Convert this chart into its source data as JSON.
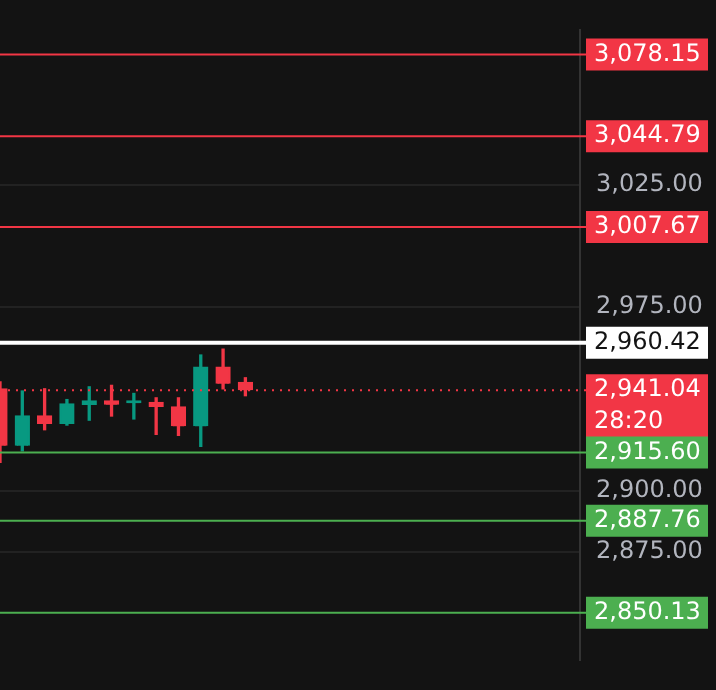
{
  "chart_data": {
    "type": "candlestick",
    "categories": [
      null,
      null,
      null,
      null,
      null,
      null,
      null,
      null,
      null,
      null,
      null,
      null,
      null,
      null,
      null,
      null,
      null,
      null,
      null,
      null,
      null,
      null,
      null,
      null,
      null,
      null,
      null
    ],
    "ohlc": [
      [
        2941.6,
        2944.4,
        2911.6,
        2918.3
      ],
      [
        2918.3,
        2940.7,
        2916.3,
        2930.5
      ],
      [
        2930.5,
        2941.6,
        2924.9,
        2927.2
      ],
      [
        2927.2,
        2937.2,
        2926.8,
        2935.4
      ],
      [
        2935.0,
        2942.4,
        2928.8,
        2936.7
      ],
      [
        2936.7,
        2943.0,
        2930.5,
        2935.4
      ],
      [
        2936.0,
        2939.7,
        2929.3,
        2936.7
      ],
      [
        2936.0,
        2937.9,
        2923.0,
        2934.2
      ],
      [
        2934.2,
        2937.9,
        2922.6,
        2926.3
      ],
      [
        2926.3,
        2955.4,
        2918.1,
        2950.4
      ],
      [
        2950.4,
        2957.8,
        2941.6,
        2943.7
      ],
      [
        2944.2,
        2946.1,
        2938.8,
        2941.04
      ],
      null,
      null,
      null,
      null,
      null,
      null,
      null,
      null,
      null,
      null,
      null,
      null,
      null,
      null,
      null
    ],
    "colors": [
      "#f23645",
      "#089981",
      "#f23645",
      "#089981",
      "#089981",
      "#f23645",
      "#089981",
      "#f23645",
      "#f23645",
      "#089981",
      "#f23645",
      "#f23645",
      null,
      null,
      null,
      null,
      null,
      null,
      null,
      null,
      null,
      null,
      null,
      null,
      null,
      null,
      null
    ],
    "ylim": [
      2831,
      3088
    ],
    "yticks": [
      {
        "value": 2875,
        "label": "2,875.00"
      },
      {
        "value": 2900,
        "label": "2,900.00"
      },
      {
        "value": 2975,
        "label": "2,975.00"
      },
      {
        "value": 3025,
        "label": "3,025.00"
      }
    ],
    "grid": "y",
    "tick_labels": "y",
    "ref_lines": [
      {
        "axis": "y",
        "value": 3078.15,
        "label": "3,078.15",
        "color": "#f23645"
      },
      {
        "axis": "y",
        "value": 3044.79,
        "label": "3,044.79",
        "color": "#f23645"
      },
      {
        "axis": "y",
        "value": 3007.67,
        "label": "3,007.67",
        "color": "#f23645"
      },
      {
        "axis": "y",
        "value": 2960.42,
        "label": "2,960.42",
        "color": "#ffffff"
      },
      {
        "axis": "y",
        "value": 2941.04,
        "label": "2,941.04\n28:20",
        "color": "#f23645",
        "line_style": "dotted"
      },
      {
        "axis": "y",
        "value": 2915.6,
        "label": "2,915.60",
        "color": "#4caf50"
      },
      {
        "axis": "y",
        "value": 2887.76,
        "label": "2,887.76",
        "color": "#4caf50"
      },
      {
        "axis": "y",
        "value": 2850.13,
        "label": "2,850.13",
        "color": "#4caf50"
      }
    ]
  }
}
